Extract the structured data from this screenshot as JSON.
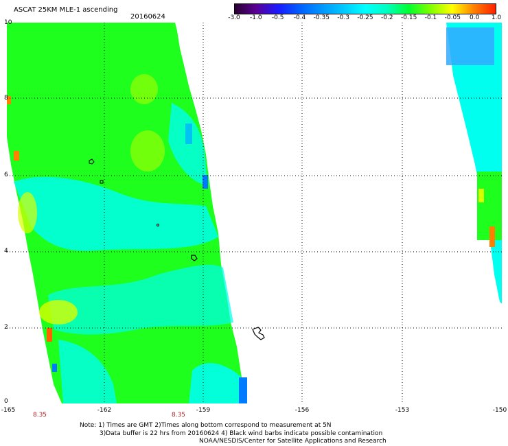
{
  "title": "ASCAT 25KM MLE-1 ascending",
  "date": "20160624",
  "colorbar": {
    "ticks": [
      "-3.0",
      "-1.0",
      "-0.5",
      "-0.4",
      "-0.35",
      "-0.3",
      "-0.25",
      "-0.2",
      "-0.15",
      "-0.1",
      "-0.05",
      "0.0",
      "1.0"
    ],
    "colors": [
      "#2b0030",
      "#5a0096",
      "#1a1aff",
      "#0060ff",
      "#0096ff",
      "#00c8ff",
      "#00ffff",
      "#00ffc0",
      "#00ff30",
      "#80ff00",
      "#ffff00",
      "#ff8000",
      "#ff2000"
    ]
  },
  "map": {
    "lat_ticks": [
      "10",
      "8",
      "6",
      "4",
      "2",
      "0"
    ],
    "lon_ticks": [
      "-165",
      "-162",
      "-159",
      "-156",
      "-153",
      "-150"
    ],
    "time_labels": [
      "8.35",
      "8.35"
    ],
    "swath_colors": {
      "main": "#1eff1e",
      "cyan": "#00ffee",
      "blue": "#007bff",
      "yellow": "#d8ff00",
      "orange": "#ff8000"
    }
  },
  "notes": {
    "line1": "Note: 1) Times are GMT 2)Times along bottom correspond to measurement at 5N",
    "line2": "3)Data buffer is 22 hrs from 20160624 4) Black wind barbs indicate possible contamination",
    "line3": "NOAA/NESDIS/Center for Satellite Applications and Research"
  }
}
